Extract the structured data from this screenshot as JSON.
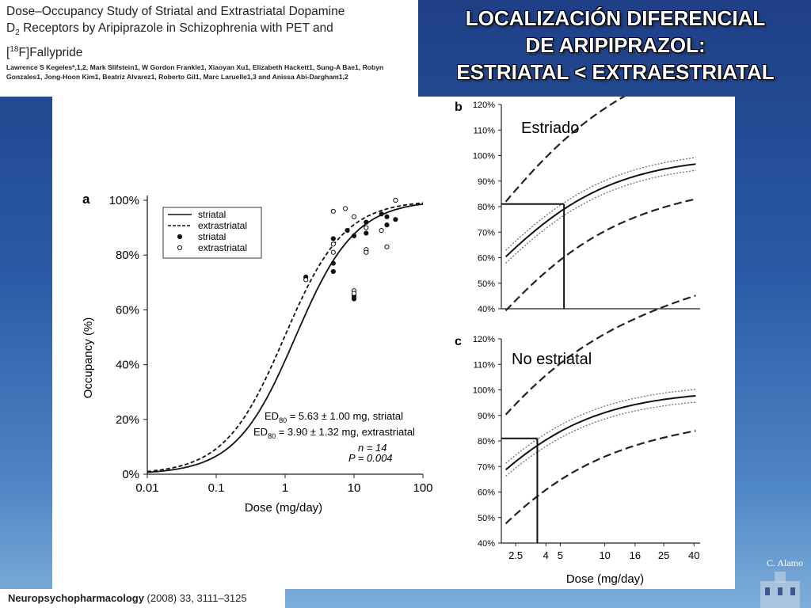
{
  "paper": {
    "title_line1": "Dose–Occupancy Study of Striatal and Extrastriatal Dopamine",
    "title_line2_pre": "D",
    "title_line2_sub": "2",
    "title_line2_post": " Receptors by Aripiprazole in Schizophrenia with PET and",
    "title_line3_pre": "[",
    "title_line3_sup": "18",
    "title_line3_post": "F]Fallypride",
    "authors": "Lawrence S Kegeles*,1,2, Mark Slifstein1, W Gordon Frankle1, Xiaoyan Xu1, Elizabeth Hackett1, Sung-A Bae1, Robyn Gonzales1, Jong-Hoon Kim1, Beatriz Alvarez1, Roberto Gil1, Marc Laruelle1,3 and Anissa Abi-Dargham1,2"
  },
  "slide": {
    "title_line1": "LOCALIZACIÓN DIFERENCIAL",
    "title_line2": "DE ARIPIPRAZOL:",
    "title_line3": "ESTRIATAL < EXTRAESTRIATAL",
    "signature": "C. Alamo"
  },
  "journal": {
    "name": "Neuropsychopharmacology",
    "ref": " (2008) 33, ",
    "pages": "3111–3125"
  },
  "chart_data": [
    {
      "panel": "a",
      "type": "scatter",
      "xlabel": "Dose (mg/day)",
      "ylabel": "Occupancy (%)",
      "x_scale": "log",
      "xlim": [
        0.01,
        100
      ],
      "ylim": [
        0,
        100
      ],
      "x_ticks": [
        "0.01",
        "0.1",
        "1",
        "10",
        "100"
      ],
      "y_ticks": [
        "0%",
        "20%",
        "40%",
        "60%",
        "80%",
        "100%"
      ],
      "legend": [
        "striatal",
        "extrastriatal",
        "striatal",
        "extrastriatal"
      ],
      "legend_position": "top-left",
      "annotations": {
        "ed_prefix": "ED",
        "ed_sub": "80",
        "ed_striatal": " = 5.63 ± 1.00 mg, striatal",
        "ed_extra": " = 3.90 ± 1.32 mg, extrastriatal",
        "n_text": "n = 14",
        "p_text": "P = 0.004"
      },
      "series": [
        {
          "name": "striatal",
          "kind": "fit",
          "style": "solid",
          "ed80": 5.63
        },
        {
          "name": "extrastriatal",
          "kind": "fit",
          "style": "dashed",
          "ed80": 3.9
        },
        {
          "name": "striatal",
          "kind": "points",
          "marker": "filled",
          "x": [
            2,
            5,
            5,
            5,
            8,
            10,
            10,
            10,
            15,
            15,
            25,
            30,
            30,
            40
          ],
          "y": [
            72,
            74,
            77,
            86,
            89,
            87,
            65,
            64,
            92,
            88,
            95,
            94,
            91,
            93
          ]
        },
        {
          "name": "extrastriatal",
          "kind": "points",
          "marker": "open",
          "x": [
            2,
            5,
            5,
            5,
            7.5,
            10,
            10,
            10,
            15,
            15,
            15,
            25,
            30,
            40
          ],
          "y": [
            71,
            81,
            84,
            96,
            97,
            94,
            67,
            66,
            90,
            82,
            81,
            89,
            83,
            100
          ]
        }
      ]
    },
    {
      "panel": "b",
      "type": "line",
      "label": "Estriado",
      "xlabel": "",
      "ylim": [
        40,
        120
      ],
      "y_ticks": [
        "40%",
        "50%",
        "60%",
        "70%",
        "80%",
        "90%",
        "100%",
        "110%",
        "120%"
      ],
      "crosshair": {
        "x": 5.3,
        "y": 81
      },
      "ed80": 5.63
    },
    {
      "panel": "c",
      "type": "line",
      "label": "No estriatal",
      "xlabel": "Dose (mg/day)",
      "x_ticks": [
        "2.5",
        "4",
        "5",
        "10",
        "16",
        "25",
        "40"
      ],
      "ylim": [
        40,
        120
      ],
      "y_ticks": [
        "40%",
        "50%",
        "60%",
        "70%",
        "80%",
        "90%",
        "100%",
        "110%",
        "120%"
      ],
      "crosshair": {
        "x": 3.5,
        "y": 81
      },
      "ed80": 3.9
    }
  ]
}
